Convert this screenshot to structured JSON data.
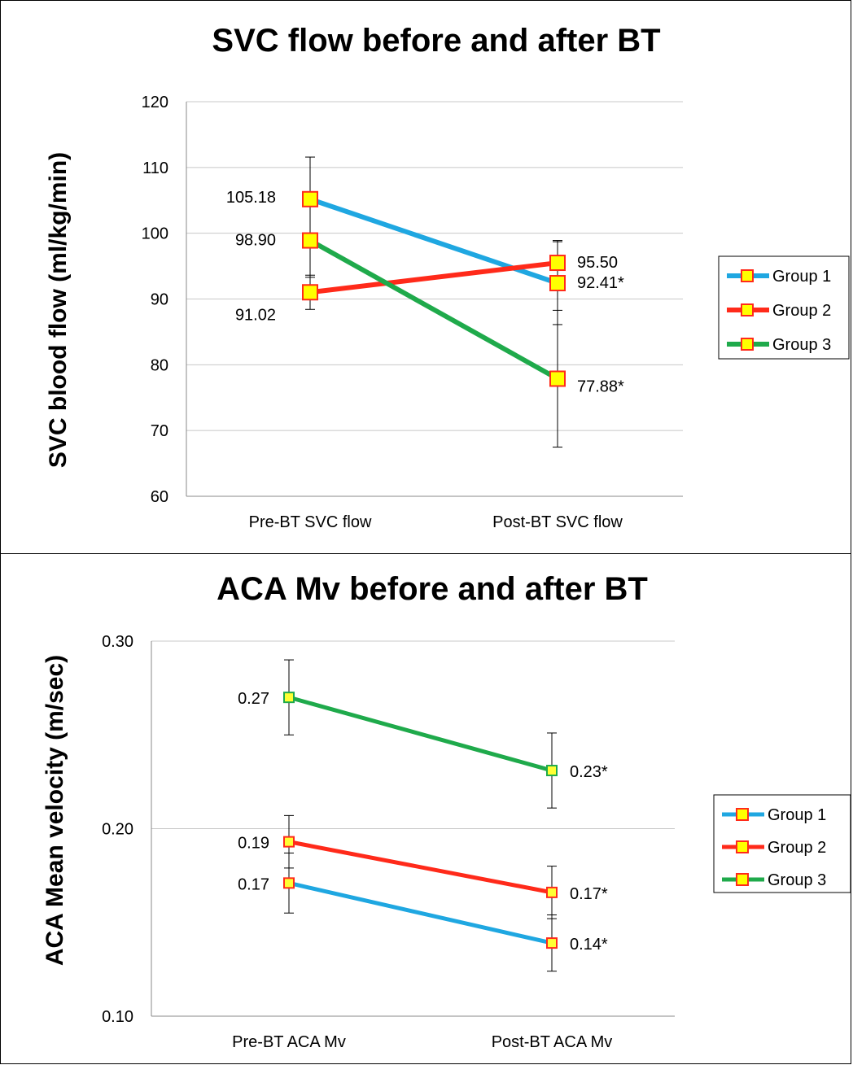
{
  "chart_data": [
    {
      "type": "line",
      "title": "SVC flow before and after BT",
      "ylabel": "SVC blood flow (ml/kg/min)",
      "xlabel": "",
      "categories": [
        "Pre-BT SVC flow",
        "Post-BT SVC flow"
      ],
      "ylim": [
        60,
        120
      ],
      "yticks": [
        60,
        70,
        80,
        90,
        100,
        110,
        120
      ],
      "ytick_labels": [
        "60",
        "70",
        "80",
        "90",
        "100",
        "110",
        "120"
      ],
      "grid": true,
      "legend_position": "right",
      "series": [
        {
          "name": "Group 1",
          "color": "#1FA7E1",
          "values": [
            105.18,
            92.41
          ],
          "errors": [
            6.4,
            6.3
          ],
          "labels": [
            "105.18",
            "92.41*"
          ]
        },
        {
          "name": "Group 2",
          "color": "#FF2A1A",
          "values": [
            91.02,
            95.5
          ],
          "errors": [
            2.6,
            3.4
          ],
          "labels": [
            "91.02",
            "95.50"
          ]
        },
        {
          "name": "Group 3",
          "color": "#1FAA4B",
          "values": [
            98.9,
            77.88
          ],
          "errors": [
            5.6,
            10.4
          ],
          "labels": [
            "98.90",
            "77.88*"
          ]
        }
      ]
    },
    {
      "type": "line",
      "title": "ACA Mv before and after BT",
      "ylabel": "ACA Mean velocity (m/sec)",
      "xlabel": "",
      "categories": [
        "Pre-BT ACA Mv",
        "Post-BT ACA Mv"
      ],
      "ylim": [
        0.1,
        0.3
      ],
      "yticks": [
        0.1,
        0.2,
        0.3
      ],
      "ytick_labels": [
        "0.10",
        "0.20",
        "0.30"
      ],
      "grid": true,
      "legend_position": "right",
      "series": [
        {
          "name": "Group 1",
          "color": "#1FA7E1",
          "values": [
            0.171,
            0.139
          ],
          "errors": [
            0.016,
            0.015
          ],
          "labels": [
            "0.17",
            "0.14*"
          ]
        },
        {
          "name": "Group 2",
          "color": "#FF2A1A",
          "values": [
            0.193,
            0.166
          ],
          "errors": [
            0.014,
            0.014
          ],
          "labels": [
            "0.19",
            "0.17*"
          ]
        },
        {
          "name": "Group 3",
          "color": "#1FAA4B",
          "values": [
            0.27,
            0.231
          ],
          "errors": [
            0.02,
            0.02
          ],
          "labels": [
            "0.27",
            "0.23*"
          ]
        }
      ]
    }
  ]
}
